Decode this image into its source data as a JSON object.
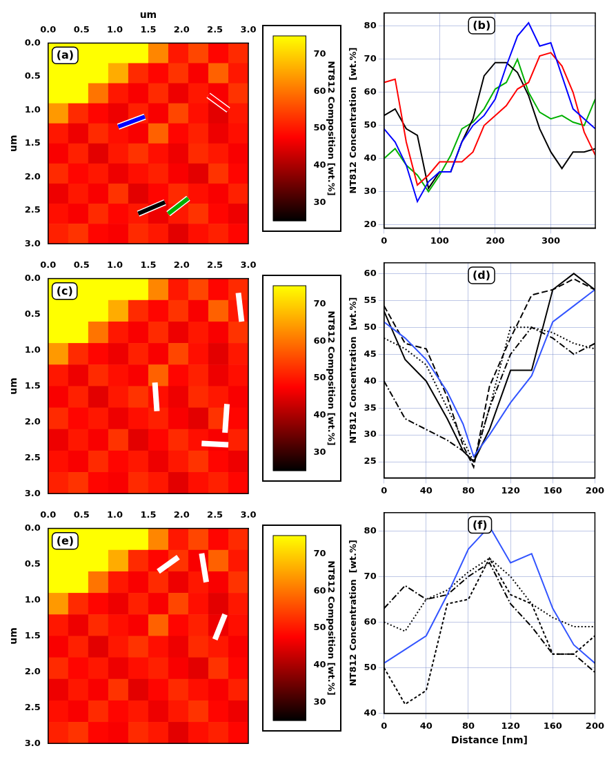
{
  "chart_data": [
    {
      "type": "heatmap",
      "panel_label": "(a)",
      "x_label": "um",
      "y_label": "um",
      "xlim": [
        0,
        3
      ],
      "ylim": [
        0,
        3
      ],
      "xticks": [
        {
          "value": 0,
          "label": "0.0"
        },
        0.5,
        {
          "value": 1,
          "label": "1.0"
        },
        1.5,
        {
          "value": 2,
          "label": "2.0"
        },
        2.5,
        {
          "value": 3,
          "label": "3.0"
        }
      ],
      "yticks": [
        {
          "value": 0,
          "label": "0.0"
        },
        0.5,
        {
          "value": 1,
          "label": "1.0"
        },
        1.5,
        {
          "value": 2,
          "label": "2.0"
        },
        2.5,
        {
          "value": 3,
          "label": "3.0"
        }
      ],
      "cells": [
        [
          75,
          75,
          75,
          75,
          75,
          62,
          50,
          55,
          48,
          52
        ],
        [
          75,
          75,
          75,
          66,
          52,
          48,
          53,
          47,
          58,
          50
        ],
        [
          75,
          75,
          60,
          50,
          47,
          52,
          46,
          50,
          47,
          53
        ],
        [
          64,
          52,
          48,
          46,
          51,
          47,
          55,
          49,
          45,
          50
        ],
        [
          50,
          46,
          52,
          49,
          47,
          58,
          48,
          51,
          46,
          49
        ],
        [
          47,
          51,
          45,
          50,
          53,
          49,
          46,
          52,
          50,
          47
        ],
        [
          52,
          48,
          50,
          46,
          49,
          51,
          47,
          45,
          53,
          48
        ],
        [
          46,
          50,
          47,
          53,
          45,
          48,
          52,
          49,
          47,
          51
        ],
        [
          49,
          47,
          52,
          48,
          50,
          46,
          50,
          53,
          48,
          46
        ],
        [
          51,
          53,
          48,
          47,
          52,
          50,
          45,
          49,
          51,
          48
        ]
      ],
      "colorbar": {
        "label": "NT812 Composition [wt.%]",
        "range": [
          25,
          75
        ],
        "ticks": [
          30,
          40,
          50,
          60,
          70
        ]
      },
      "profile_lines": [
        {
          "color": "#0000ff",
          "x": [
            1.05,
            1.45
          ],
          "y": [
            1.25,
            1.1
          ]
        },
        {
          "color": "#ff0000",
          "x": [
            2.4,
            2.7
          ],
          "y": [
            0.78,
            1.0
          ]
        },
        {
          "color": "#000000",
          "x": [
            1.35,
            1.75
          ],
          "y": [
            2.55,
            2.38
          ]
        },
        {
          "color": "#00b000",
          "x": [
            1.8,
            2.1
          ],
          "y": [
            2.55,
            2.32
          ]
        }
      ]
    },
    {
      "type": "line",
      "panel_label": "(b)",
      "y_label": "NT812 Concentration  [wt.%]",
      "x": [
        0,
        20,
        40,
        60,
        80,
        100,
        120,
        140,
        160,
        180,
        200,
        220,
        240,
        260,
        280,
        300,
        320,
        340,
        360,
        380
      ],
      "xlim": [
        0,
        380
      ],
      "xticks": [
        0,
        100,
        200,
        300
      ],
      "ylim": [
        19,
        84
      ],
      "yticks": [
        20,
        30,
        40,
        50,
        60,
        70,
        80
      ],
      "grid": true,
      "series": [
        {
          "color": "#0000ff",
          "line_style": "solid",
          "values": [
            49,
            45,
            38,
            27,
            33,
            36,
            36,
            45,
            50,
            53,
            58,
            68,
            77,
            81,
            74,
            75,
            65,
            55,
            52,
            49
          ]
        },
        {
          "color": "#ff0000",
          "line_style": "solid",
          "values": [
            63,
            64,
            45,
            32,
            35,
            39,
            39,
            39,
            42,
            50,
            53,
            56,
            61,
            63,
            71,
            72,
            68,
            60,
            48,
            41
          ]
        },
        {
          "color": "#000000",
          "line_style": "solid",
          "values": [
            53,
            55,
            49,
            47,
            31,
            36,
            36,
            45,
            52,
            65,
            69,
            69,
            66,
            59,
            49,
            42,
            37,
            42,
            42,
            43
          ]
        },
        {
          "color": "#00b000",
          "line_style": "solid",
          "values": [
            40,
            43,
            38,
            35,
            30,
            35,
            41,
            49,
            51,
            55,
            61,
            63,
            70,
            60,
            54,
            52,
            53,
            51,
            50,
            58
          ]
        }
      ]
    },
    {
      "type": "heatmap",
      "panel_label": "(c)",
      "y_label": "um",
      "xlim": [
        0,
        3
      ],
      "ylim": [
        0,
        3
      ],
      "xticks": [
        {
          "value": 0,
          "label": "0.0"
        },
        0.5,
        {
          "value": 1,
          "label": "1.0"
        },
        1.5,
        {
          "value": 2,
          "label": "2.0"
        },
        2.5,
        {
          "value": 3,
          "label": "3.0"
        }
      ],
      "yticks": [
        {
          "value": 0,
          "label": "0.0"
        },
        0.5,
        {
          "value": 1,
          "label": "1.0"
        },
        1.5,
        {
          "value": 2,
          "label": "2.0"
        },
        2.5,
        {
          "value": 3,
          "label": "3.0"
        }
      ],
      "cells": [
        [
          75,
          75,
          75,
          75,
          75,
          62,
          50,
          55,
          48,
          52
        ],
        [
          75,
          75,
          75,
          66,
          52,
          48,
          53,
          47,
          58,
          50
        ],
        [
          75,
          75,
          60,
          50,
          47,
          52,
          46,
          50,
          47,
          53
        ],
        [
          64,
          52,
          48,
          46,
          51,
          47,
          55,
          49,
          45,
          50
        ],
        [
          50,
          46,
          52,
          49,
          47,
          58,
          48,
          51,
          46,
          49
        ],
        [
          47,
          51,
          45,
          50,
          53,
          49,
          46,
          52,
          50,
          47
        ],
        [
          52,
          48,
          50,
          46,
          49,
          51,
          47,
          45,
          53,
          48
        ],
        [
          46,
          50,
          47,
          53,
          45,
          48,
          52,
          49,
          47,
          51
        ],
        [
          49,
          47,
          52,
          48,
          50,
          46,
          50,
          53,
          48,
          46
        ],
        [
          51,
          53,
          48,
          47,
          52,
          50,
          45,
          49,
          51,
          48
        ]
      ],
      "colorbar": {
        "label": "NT812 Composition [wt.%]",
        "range": [
          25,
          75
        ],
        "ticks": [
          30,
          40,
          50,
          60,
          70
        ]
      },
      "profile_lines": [
        {
          "color": "#ffffff",
          "x": [
            2.85,
            2.9
          ],
          "y": [
            0.2,
            0.6
          ]
        },
        {
          "color": "#ffffff",
          "x": [
            1.6,
            1.63
          ],
          "y": [
            1.45,
            1.85
          ]
        },
        {
          "color": "#ffffff",
          "x": [
            2.68,
            2.65
          ],
          "y": [
            1.75,
            2.15
          ]
        },
        {
          "color": "#ffffff",
          "x": [
            2.3,
            2.7
          ],
          "y": [
            2.3,
            2.32
          ]
        }
      ]
    },
    {
      "type": "line",
      "panel_label": "(d)",
      "y_label": "NT812 Concentration  [wt.%]",
      "x": [
        0,
        20,
        40,
        60,
        75,
        85,
        100,
        120,
        140,
        160,
        180,
        200
      ],
      "xlim": [
        0,
        200
      ],
      "xticks": [
        0,
        40,
        80,
        120,
        160,
        200
      ],
      "ylim": [
        22,
        62
      ],
      "yticks": [
        25,
        30,
        35,
        40,
        45,
        50,
        55,
        60
      ],
      "grid": true,
      "series": [
        {
          "color": "#3355ff",
          "line_style": "solid",
          "values": [
            51,
            48,
            44,
            38,
            32,
            26,
            30,
            36,
            41,
            51,
            54,
            57
          ]
        },
        {
          "color": "#000000",
          "line_style": "solid",
          "values": [
            53,
            44,
            40,
            33,
            27,
            25,
            31,
            42,
            42,
            57,
            60,
            57
          ]
        },
        {
          "color": "#000000",
          "line_style": "dashed",
          "values": [
            54,
            47,
            46,
            37,
            28,
            24,
            39,
            48,
            56,
            57,
            59,
            57
          ]
        },
        {
          "color": "#000000",
          "line_style": "dotted",
          "values": [
            48,
            46,
            43,
            35,
            29,
            25,
            35,
            50,
            50,
            49,
            47,
            46
          ]
        },
        {
          "color": "#000000",
          "line_style": "dashdot",
          "values": [
            40,
            33,
            31,
            29,
            27,
            25,
            35,
            45,
            50,
            48,
            45,
            47
          ]
        }
      ]
    },
    {
      "type": "heatmap",
      "panel_label": "(e)",
      "y_label": "um",
      "xlim": [
        0,
        3
      ],
      "ylim": [
        0,
        3
      ],
      "xticks": [
        {
          "value": 0,
          "label": "0.0"
        },
        0.5,
        {
          "value": 1,
          "label": "1.0"
        },
        1.5,
        {
          "value": 2,
          "label": "2.0"
        },
        2.5,
        {
          "value": 3,
          "label": "3.0"
        }
      ],
      "yticks": [
        {
          "value": 0,
          "label": "0.0"
        },
        0.5,
        {
          "value": 1,
          "label": "1.0"
        },
        1.5,
        {
          "value": 2,
          "label": "2.0"
        },
        2.5,
        {
          "value": 3,
          "label": "3.0"
        }
      ],
      "cells": [
        [
          75,
          75,
          75,
          75,
          75,
          62,
          50,
          55,
          48,
          52
        ],
        [
          75,
          75,
          75,
          66,
          52,
          48,
          53,
          47,
          58,
          50
        ],
        [
          75,
          75,
          60,
          50,
          47,
          52,
          46,
          50,
          47,
          53
        ],
        [
          64,
          52,
          48,
          46,
          51,
          47,
          55,
          49,
          45,
          50
        ],
        [
          50,
          46,
          52,
          49,
          47,
          58,
          48,
          51,
          46,
          49
        ],
        [
          47,
          51,
          45,
          50,
          53,
          49,
          46,
          52,
          50,
          47
        ],
        [
          52,
          48,
          50,
          46,
          49,
          51,
          47,
          45,
          53,
          48
        ],
        [
          46,
          50,
          47,
          53,
          45,
          48,
          52,
          49,
          47,
          51
        ],
        [
          49,
          47,
          52,
          48,
          50,
          46,
          50,
          53,
          48,
          46
        ],
        [
          51,
          53,
          48,
          47,
          52,
          50,
          45,
          49,
          51,
          48
        ]
      ],
      "colorbar": {
        "label": "NT812 Composition [wt.%]",
        "range": [
          25,
          75
        ],
        "ticks": [
          30,
          40,
          50,
          60,
          70
        ]
      },
      "profile_lines": [
        {
          "color": "#ffffff",
          "x": [
            1.65,
            1.95
          ],
          "y": [
            0.6,
            0.4
          ]
        },
        {
          "color": "#ffffff",
          "x": [
            2.3,
            2.37
          ],
          "y": [
            0.35,
            0.75
          ]
        },
        {
          "color": "#ffffff",
          "x": [
            2.65,
            2.5
          ],
          "y": [
            1.2,
            1.55
          ]
        }
      ]
    },
    {
      "type": "line",
      "panel_label": "(f)",
      "x_label": "Distance [nm]",
      "y_label": "NT812 Concentration  [wt.%]",
      "x": [
        0,
        20,
        40,
        60,
        80,
        100,
        120,
        140,
        160,
        180,
        200
      ],
      "xlim": [
        0,
        200
      ],
      "xticks": [
        0,
        40,
        80,
        120,
        160,
        200
      ],
      "ylim": [
        40,
        84
      ],
      "yticks": [
        40,
        50,
        60,
        70,
        80
      ],
      "grid": true,
      "series": [
        {
          "color": "#3355ff",
          "line_style": "solid",
          "values": [
            51,
            54,
            57,
            66,
            76,
            81,
            73,
            75,
            63,
            55,
            51
          ]
        },
        {
          "color": "#000000",
          "line_style": "dotted",
          "values": [
            60,
            58,
            65,
            67,
            71,
            74,
            70,
            64,
            61,
            59,
            59
          ]
        },
        {
          "color": "#000000",
          "line_style": "shortdash",
          "values": [
            50,
            42,
            45,
            64,
            65,
            74,
            66,
            64,
            53,
            53,
            57
          ]
        },
        {
          "color": "#000000",
          "line_style": "dashdot",
          "values": [
            63,
            68,
            65,
            66,
            70,
            73,
            64,
            59,
            53,
            53,
            49
          ]
        }
      ]
    }
  ]
}
